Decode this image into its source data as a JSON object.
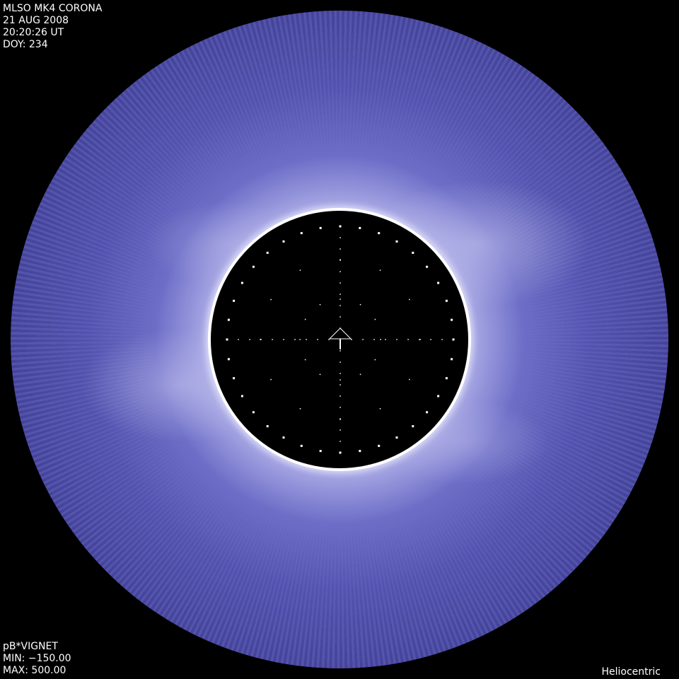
{
  "header": {
    "instrument": "MLSO MK4 CORONA",
    "date": "21 AUG 2008",
    "time": "20:20:26 UT",
    "doy": "DOY: 234"
  },
  "footer": {
    "product": "pB*VIGNET",
    "min": "MIN: −150.00",
    "max": "MAX: 500.00",
    "frame": "Heliocentric"
  },
  "colors": {
    "corona_inner": "#c8c8ee",
    "corona_outer": "#4a4aa6",
    "background": "#000000"
  },
  "icons": {
    "center_marker": "north-arrow-icon"
  }
}
